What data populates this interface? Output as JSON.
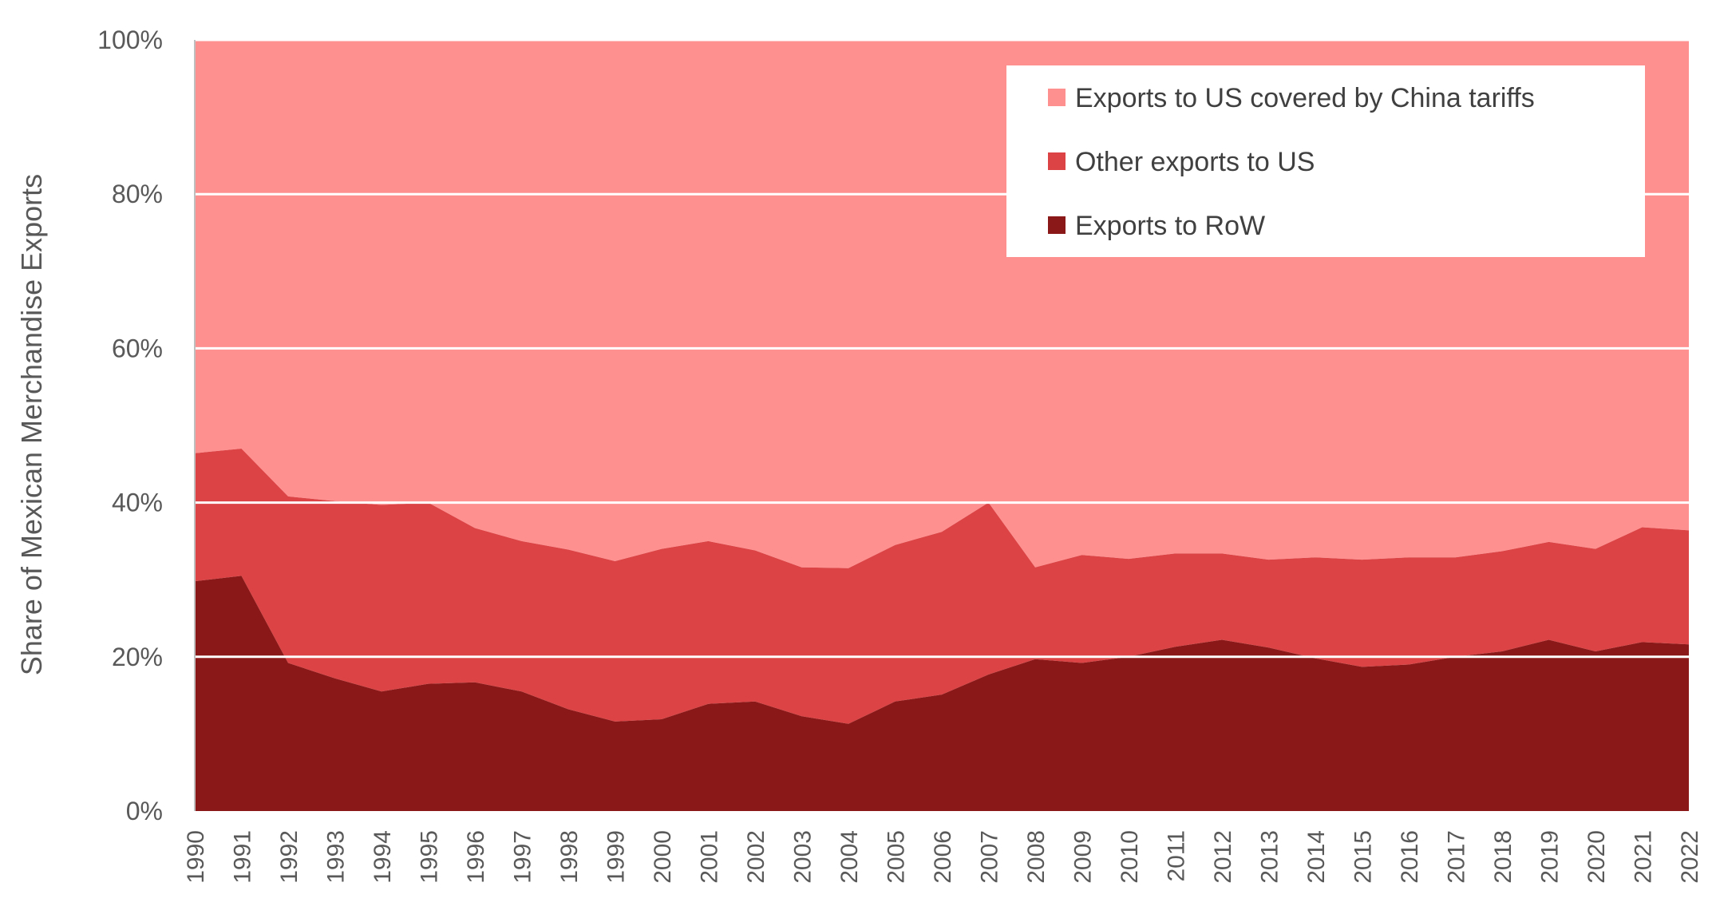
{
  "chart_data": {
    "type": "area",
    "stacked": true,
    "title": "",
    "xlabel": "",
    "ylabel": "Share of Mexican Merchandise Exports",
    "ylim": [
      0,
      100
    ],
    "yticks": [
      "0%",
      "20%",
      "40%",
      "60%",
      "80%",
      "100%"
    ],
    "grid": "horizontal",
    "legend_position": "top-right",
    "x": [
      "1990",
      "1991",
      "1992",
      "1993",
      "1994",
      "1995",
      "1996",
      "1997",
      "1998",
      "1999",
      "2000",
      "2001",
      "2002",
      "2003",
      "2004",
      "2005",
      "2006",
      "2007",
      "2008",
      "2009",
      "2010",
      "2011",
      "2012",
      "2013",
      "2014",
      "2015",
      "2016",
      "2017",
      "2018",
      "2019",
      "2020",
      "2021",
      "2022"
    ],
    "series": [
      {
        "name": "Exports to RoW",
        "color": "#8b1818",
        "values": [
          29.8,
          30.5,
          19.2,
          17.2,
          15.5,
          16.5,
          16.7,
          15.5,
          13.2,
          11.6,
          11.9,
          13.9,
          14.2,
          12.3,
          11.3,
          14.2,
          15.1,
          17.7,
          19.7,
          19.2,
          20.0,
          21.3,
          22.2,
          21.2,
          19.8,
          18.7,
          19.0,
          20.0,
          20.7,
          22.2,
          20.7,
          21.9,
          21.6
        ],
        "top": [
          29.8,
          30.5,
          19.2,
          17.2,
          15.5,
          16.5,
          16.7,
          15.5,
          13.2,
          11.6,
          11.9,
          13.9,
          14.2,
          12.3,
          11.3,
          14.2,
          15.1,
          17.7,
          19.7,
          19.2,
          20.0,
          21.3,
          22.2,
          21.2,
          19.8,
          18.7,
          19.0,
          20.0,
          20.7,
          22.2,
          20.7,
          21.9,
          21.6
        ]
      },
      {
        "name": "Other exports to US",
        "color": "#dc4344",
        "values": [
          16.6,
          16.5,
          21.6,
          23.0,
          24.2,
          23.5,
          20.0,
          19.5,
          20.7,
          20.8,
          22.1,
          21.1,
          19.6,
          19.3,
          20.2,
          20.3,
          21.1,
          22.3,
          11.9,
          14.0,
          12.7,
          12.1,
          11.2,
          11.4,
          13.1,
          13.9,
          13.9,
          12.9,
          13.0,
          12.7,
          13.3,
          14.9,
          14.8
        ],
        "top": [
          46.4,
          47.0,
          40.8,
          40.2,
          39.7,
          40.0,
          36.7,
          35.0,
          33.9,
          32.4,
          34.0,
          35.0,
          33.8,
          31.6,
          31.5,
          34.5,
          36.2,
          40.0,
          31.6,
          33.2,
          32.7,
          33.4,
          33.4,
          32.6,
          32.9,
          32.6,
          32.9,
          32.9,
          33.7,
          34.9,
          34.0,
          36.8,
          36.4
        ]
      },
      {
        "name": "Exports to US covered by China tariffs",
        "color": "#ff9090",
        "values": [
          53.6,
          53.0,
          59.2,
          59.8,
          60.3,
          60.0,
          63.3,
          65.0,
          66.1,
          67.6,
          66.0,
          65.0,
          66.2,
          68.4,
          68.5,
          65.5,
          63.8,
          60.0,
          68.4,
          66.8,
          67.3,
          66.6,
          66.6,
          67.4,
          67.1,
          67.4,
          67.1,
          67.1,
          66.3,
          65.1,
          66.0,
          63.2,
          63.6
        ],
        "top": [
          100,
          100,
          100,
          100,
          100,
          100,
          100,
          100,
          100,
          100,
          100,
          100,
          100,
          100,
          100,
          100,
          100,
          100,
          100,
          100,
          100,
          100,
          100,
          100,
          100,
          100,
          100,
          100,
          100,
          100,
          100,
          100,
          100
        ]
      }
    ],
    "legend_order": [
      "Exports to US covered by China tariffs",
      "Other exports to US",
      "Exports to RoW"
    ]
  }
}
